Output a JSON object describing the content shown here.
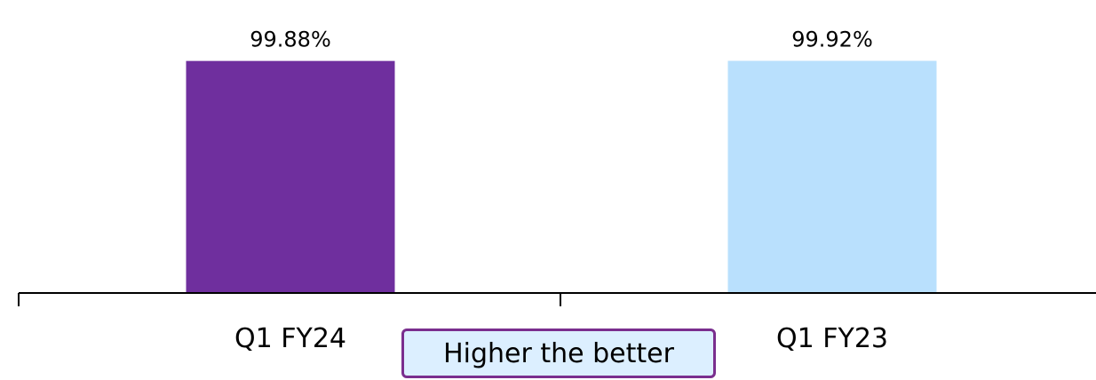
{
  "chart_data": {
    "type": "bar",
    "categories": [
      "Q1 FY24",
      "Q1 FY23"
    ],
    "values": [
      99.88,
      99.92
    ],
    "data_labels": [
      "99.88%",
      "99.92%"
    ],
    "colors": [
      "#6f2f9e",
      "#b9e0fd"
    ],
    "title": "",
    "xlabel": "",
    "ylabel": "",
    "ylim": [
      0,
      120
    ],
    "grid": false,
    "legend": "none"
  },
  "annotation": {
    "text": "Higher the better",
    "border_color": "#7a2e8e",
    "background_color": "#dcefff"
  }
}
